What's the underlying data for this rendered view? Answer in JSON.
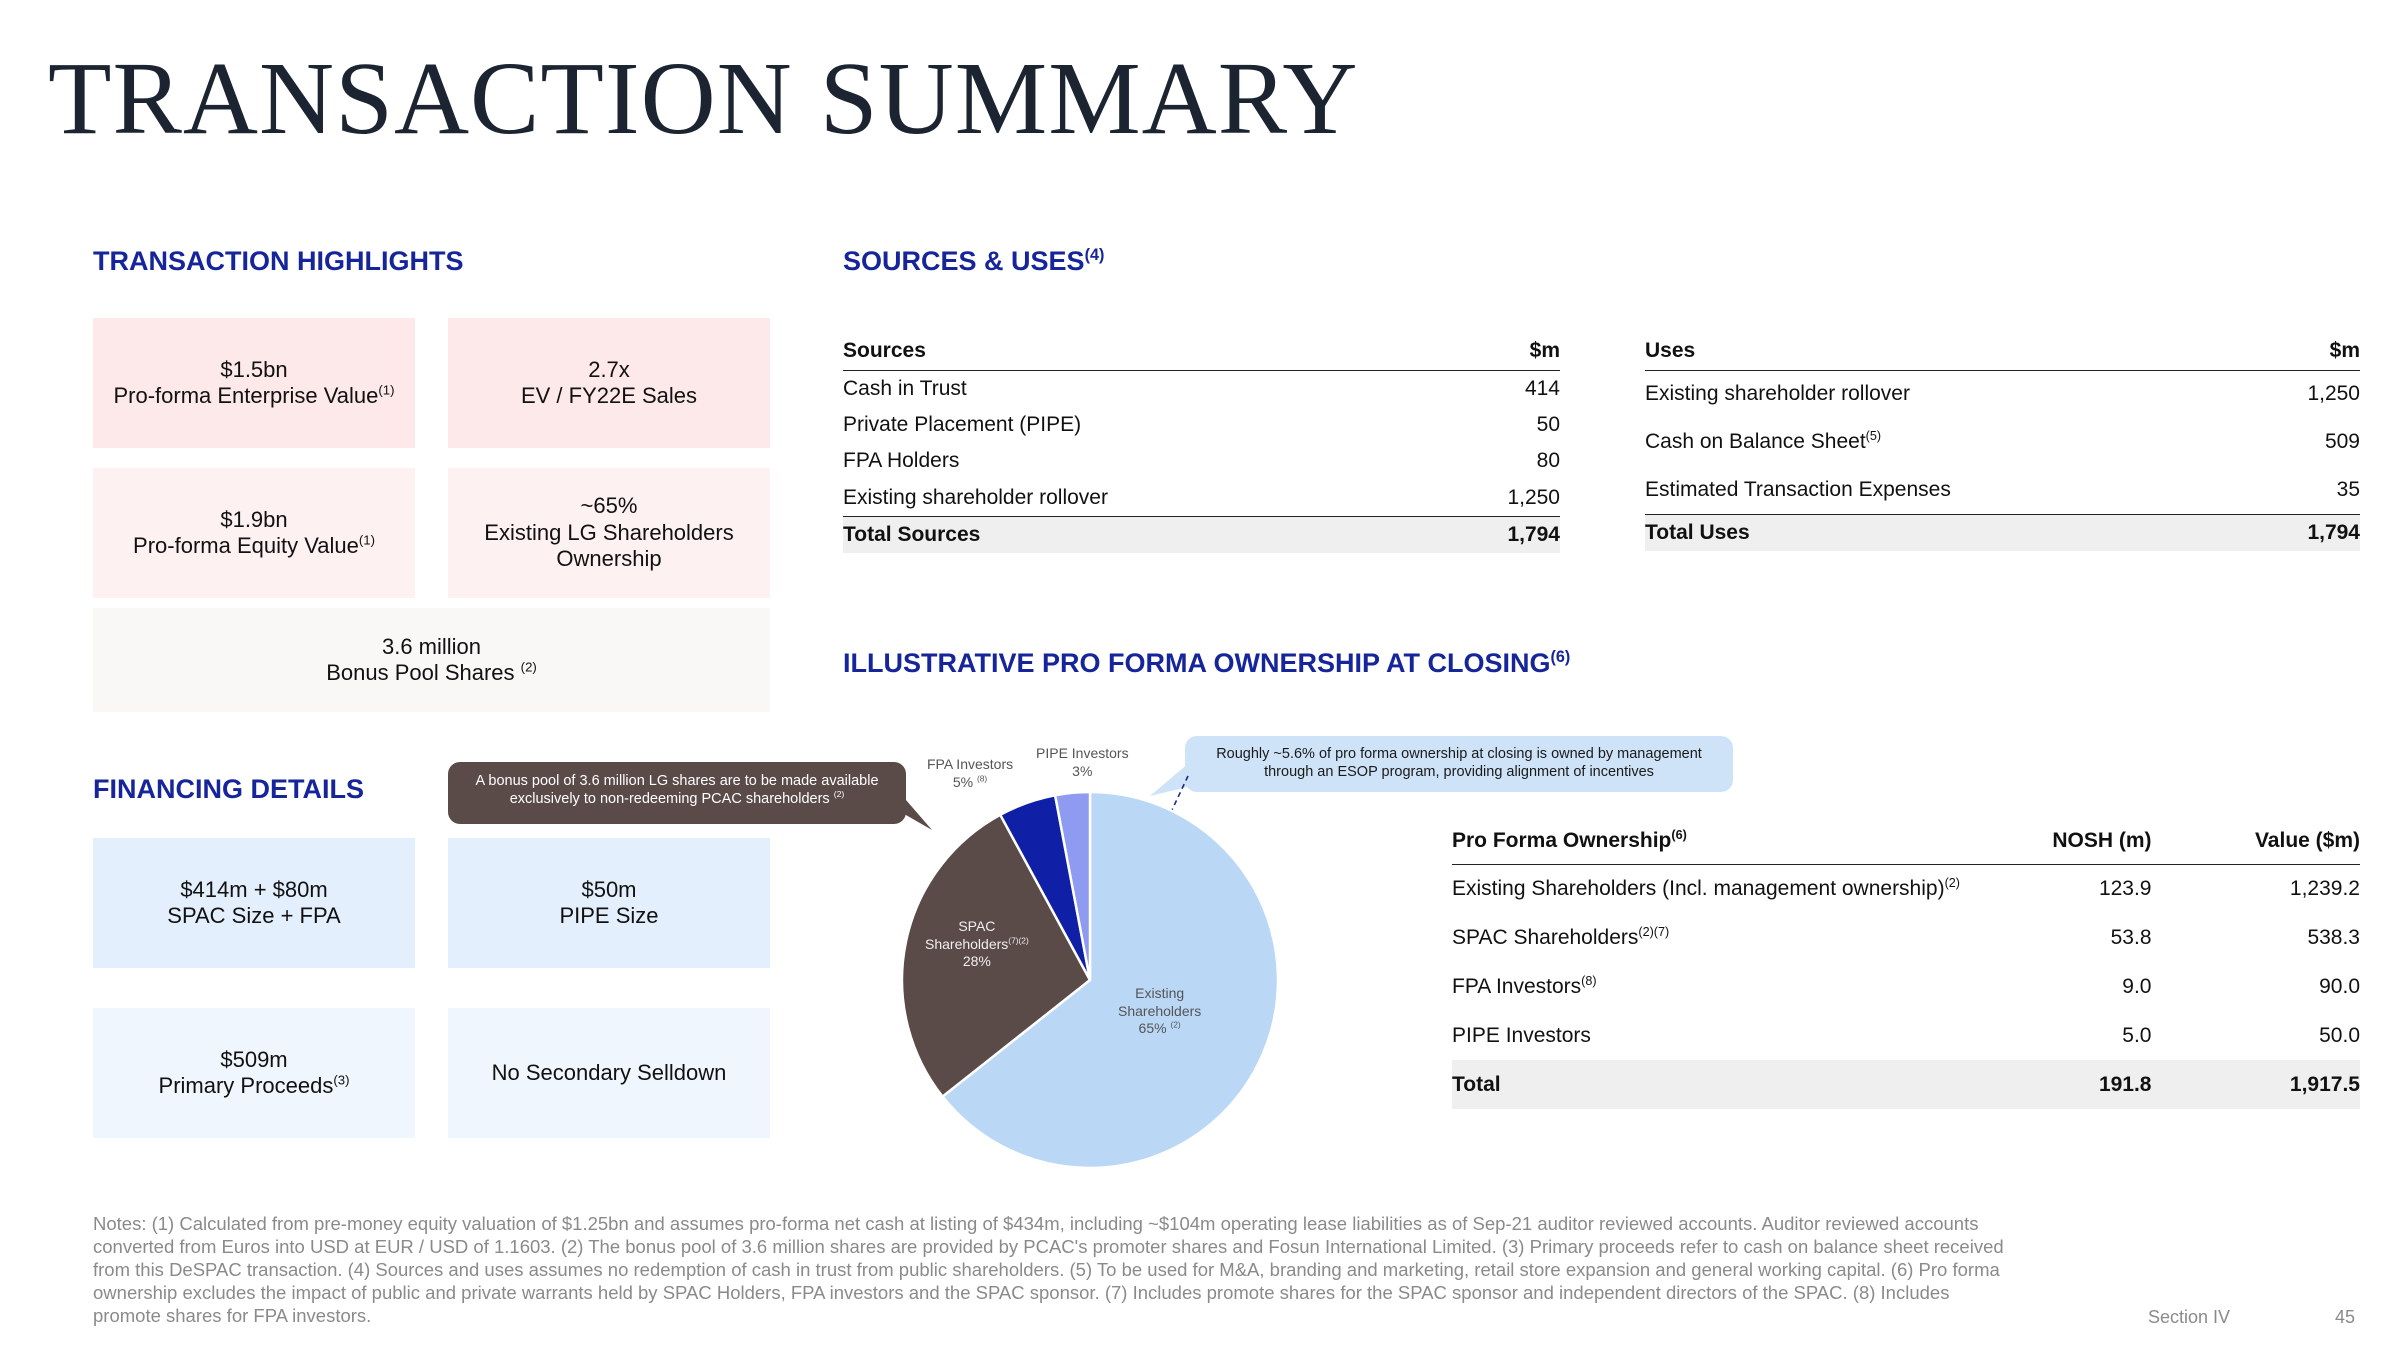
{
  "title": "TRANSACTION SUMMARY",
  "highlights": {
    "heading": "TRANSACTION HIGHLIGHTS",
    "ev_value": "$1.5bn",
    "ev_label": "Pro-forma Enterprise Value",
    "ev_sup": "(1)",
    "multiple_value": "2.7x",
    "multiple_label": "EV / FY22E Sales",
    "equity_value": "$1.9bn",
    "equity_label": "Pro-forma Equity Value",
    "equity_sup": "(1)",
    "ownership_value": "~65%",
    "ownership_label1": "Existing LG Shareholders",
    "ownership_label2": "Ownership",
    "bonus_value": "3.6 million",
    "bonus_label": "Bonus Pool Shares ",
    "bonus_sup": "(2)"
  },
  "bonus_callout": {
    "line1": "A bonus pool of 3.6 million LG shares are to be made available",
    "line2": "exclusively to non-redeeming PCAC shareholders ",
    "sup": "(2)"
  },
  "financing": {
    "heading": "FINANCING DETAILS",
    "spac_value": "$414m + $80m",
    "spac_label": "SPAC Size + FPA",
    "pipe_value": "$50m",
    "pipe_label": "PIPE Size",
    "primary_value": "$509m",
    "primary_label": "Primary Proceeds",
    "primary_sup": "(3)",
    "secondary_label": "No Secondary Selldown"
  },
  "sources_uses": {
    "heading": "SOURCES & USES",
    "heading_sup": "(4)",
    "sources_header": "Sources",
    "sources_unit": "$m",
    "sources": [
      {
        "label": "Cash in Trust",
        "value": "414"
      },
      {
        "label": "Private Placement (PIPE)",
        "value": "50"
      },
      {
        "label": "FPA Holders",
        "value": "80"
      },
      {
        "label": "Existing shareholder rollover",
        "value": "1,250"
      }
    ],
    "sources_total_label": "Total Sources",
    "sources_total_value": "1,794",
    "uses_header": "Uses",
    "uses_unit": "$m",
    "uses": [
      {
        "label": "Existing shareholder rollover",
        "sup": "",
        "value": "1,250"
      },
      {
        "label": "Cash on Balance Sheet",
        "sup": "(5)",
        "value": "509"
      },
      {
        "label": "Estimated Transaction Expenses",
        "sup": "",
        "value": "35"
      }
    ],
    "uses_total_label": "Total Uses",
    "uses_total_value": "1,794"
  },
  "ownership": {
    "heading": "ILLUSTRATIVE PRO FORMA OWNERSHIP AT CLOSING",
    "heading_sup": "(6)",
    "esop_callout_line1": "Roughly ~5.6% of pro forma ownership at closing is owned by management",
    "esop_callout_line2": "through an ESOP program, providing alignment of incentives",
    "table_header": {
      "label": "Pro Forma Ownership",
      "sup": "(6)",
      "nosh": "NOSH (m)",
      "value": "Value ($m)"
    },
    "rows": [
      {
        "label": "Existing Shareholders (Incl. management ownership)",
        "sup": "(2)",
        "nosh": "123.9",
        "value": "1,239.2"
      },
      {
        "label": "SPAC Shareholders",
        "sup": "(2)(7)",
        "nosh": "53.8",
        "value": "538.3"
      },
      {
        "label": "FPA Investors",
        "sup": "(8)",
        "nosh": "9.0",
        "value": "90.0"
      },
      {
        "label": "PIPE Investors",
        "sup": "",
        "nosh": "5.0",
        "value": "50.0"
      }
    ],
    "total": {
      "label": "Total",
      "nosh": "191.8",
      "value": "1,917.5"
    }
  },
  "chart_data": {
    "type": "pie",
    "labels": [
      "Existing Shareholders",
      "SPAC Shareholders",
      "FPA Investors",
      "PIPE Investors"
    ],
    "values": [
      65,
      28,
      5,
      3
    ],
    "colors": [
      "#bad8f6",
      "#5a4b49",
      "#1020a6",
      "#8e9bf0"
    ],
    "slice_labels": {
      "existing": {
        "line1": "Existing",
        "line2": "Shareholders",
        "pct": "65% ",
        "sup": "(2)"
      },
      "spac": {
        "line1": "SPAC",
        "line2": "Shareholders",
        "sup": "(7)(2)",
        "pct": "28%"
      },
      "fpa": {
        "line1": "FPA Investors",
        "pct": "5% ",
        "sup": "(8)"
      },
      "pipe": {
        "line1": "PIPE Investors",
        "pct": "3%"
      }
    }
  },
  "notes": [
    "Notes: (1) Calculated from pre-money equity valuation of $1.25bn and assumes pro-forma net cash at listing of $434m, including ~$104m operating lease liabilities as of Sep-21 auditor reviewed accounts. Auditor reviewed accounts",
    "converted from Euros into USD at EUR / USD of 1.1603. (2) The bonus pool of 3.6 million shares are provided by PCAC's promoter shares and Fosun International Limited. (3) Primary proceeds refer to cash on balance sheet received",
    "from this DeSPAC transaction. (4) Sources and uses assumes no redemption of cash in trust from public shareholders. (5) To be used for M&A, branding and marketing, retail store expansion and general working capital. (6) Pro forma",
    "ownership excludes the impact of public and private warrants held by SPAC Holders, FPA investors and the SPAC sponsor. (7) Includes promote shares for the SPAC sponsor and independent directors of the SPAC. (8) Includes",
    "promote shares for FPA investors."
  ],
  "footer": {
    "section": "Section IV",
    "page": "45"
  }
}
